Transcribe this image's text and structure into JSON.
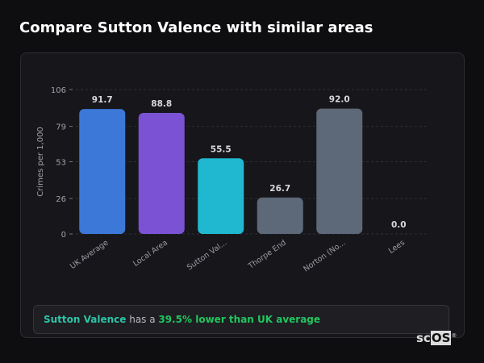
{
  "title": "Compare Sutton Valence with similar areas",
  "chart_data": {
    "type": "bar",
    "ylabel": "Crimes per 1,000",
    "ylim": [
      0,
      106
    ],
    "yticks": [
      0,
      26,
      53,
      79,
      106
    ],
    "grid": true,
    "categories": [
      "UK Average",
      "Local Area",
      "Sutton Val...",
      "Thorpe End",
      "Norton (No...",
      "Lees"
    ],
    "values": [
      91.7,
      88.8,
      55.5,
      26.7,
      92.0,
      0.0
    ],
    "value_labels": [
      "91.7",
      "88.8",
      "55.5",
      "26.7",
      "92.0",
      "0.0"
    ],
    "colors": [
      "#3b78d8",
      "#7b52d4",
      "#20b8d0",
      "#5d6878",
      "#5d6878",
      "#5d6878"
    ]
  },
  "summary": {
    "area": "Sutton Valence",
    "middle": " has a ",
    "comparison": "39.5% lower than UK average"
  },
  "logo": {
    "text": "scOS"
  }
}
